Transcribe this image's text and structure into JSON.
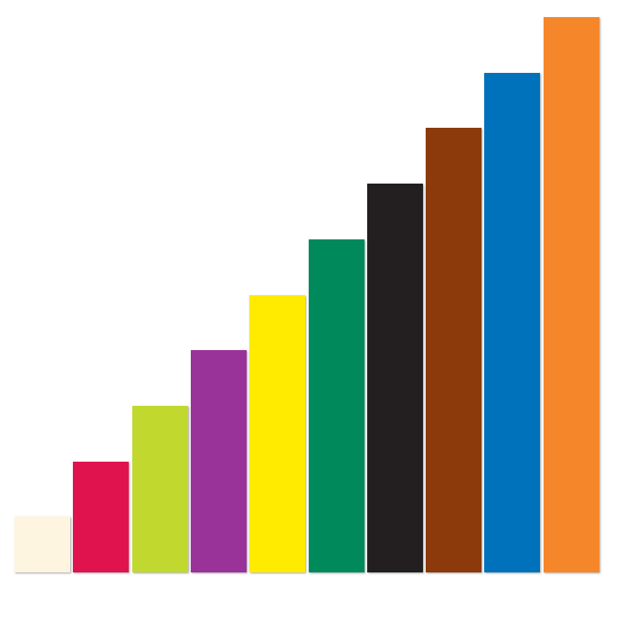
{
  "rods": [
    {
      "length": 1,
      "color": "#fdf5df"
    },
    {
      "length": 2,
      "color": "#e0134f"
    },
    {
      "length": 3,
      "color": "#c1d82f"
    },
    {
      "length": 4,
      "color": "#993399"
    },
    {
      "length": 5,
      "color": "#ffeb00"
    },
    {
      "length": 6,
      "color": "#00895a"
    },
    {
      "length": 7,
      "color": "#231f20"
    },
    {
      "length": 8,
      "color": "#8c3a0c"
    },
    {
      "length": 9,
      "color": "#0072bc"
    },
    {
      "length": 10,
      "color": "#f5872a"
    }
  ]
}
